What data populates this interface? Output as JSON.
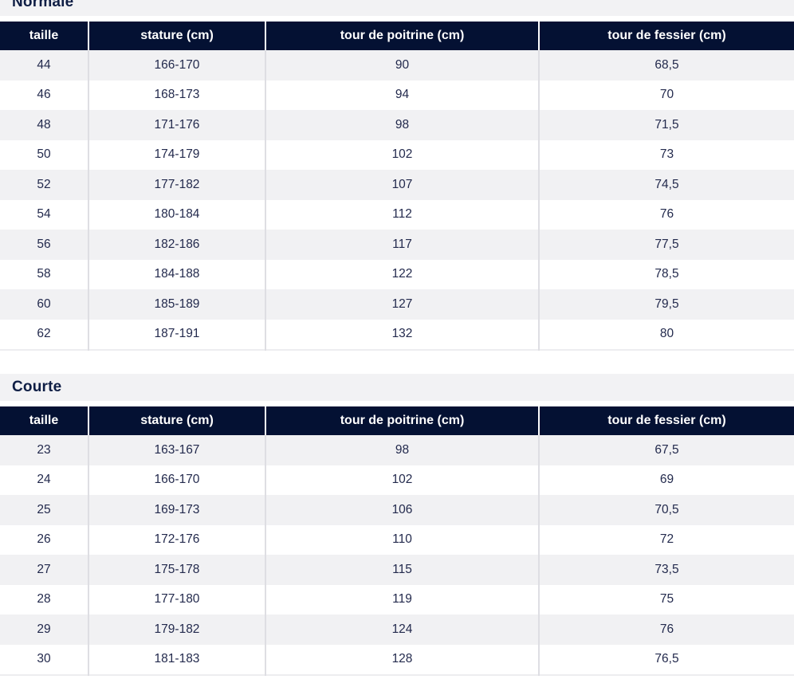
{
  "colors": {
    "header_bg": "#041133",
    "header_text": "#ffffff",
    "row_alt_bg": "#f1f1f3",
    "row_bg": "#ffffff",
    "title_band_bg": "#f2f2f4",
    "title_text": "#0f1e45",
    "cell_text": "#232a4d",
    "divider": "#dedee3"
  },
  "sections": [
    {
      "title": "Normale",
      "columns": [
        "taille",
        "stature (cm)",
        "tour de poitrine (cm)",
        "tour de fessier (cm)"
      ],
      "rows": [
        [
          "44",
          "166-170",
          "90",
          "68,5"
        ],
        [
          "46",
          "168-173",
          "94",
          "70"
        ],
        [
          "48",
          "171-176",
          "98",
          "71,5"
        ],
        [
          "50",
          "174-179",
          "102",
          "73"
        ],
        [
          "52",
          "177-182",
          "107",
          "74,5"
        ],
        [
          "54",
          "180-184",
          "112",
          "76"
        ],
        [
          "56",
          "182-186",
          "117",
          "77,5"
        ],
        [
          "58",
          "184-188",
          "122",
          "78,5"
        ],
        [
          "60",
          "185-189",
          "127",
          "79,5"
        ],
        [
          "62",
          "187-191",
          "132",
          "80"
        ]
      ]
    },
    {
      "title": "Courte",
      "columns": [
        "taille",
        "stature (cm)",
        "tour de poitrine (cm)",
        "tour de fessier (cm)"
      ],
      "rows": [
        [
          "23",
          "163-167",
          "98",
          "67,5"
        ],
        [
          "24",
          "166-170",
          "102",
          "69"
        ],
        [
          "25",
          "169-173",
          "106",
          "70,5"
        ],
        [
          "26",
          "172-176",
          "110",
          "72"
        ],
        [
          "27",
          "175-178",
          "115",
          "73,5"
        ],
        [
          "28",
          "177-180",
          "119",
          "75"
        ],
        [
          "29",
          "179-182",
          "124",
          "76"
        ],
        [
          "30",
          "181-183",
          "128",
          "76,5"
        ]
      ]
    }
  ]
}
